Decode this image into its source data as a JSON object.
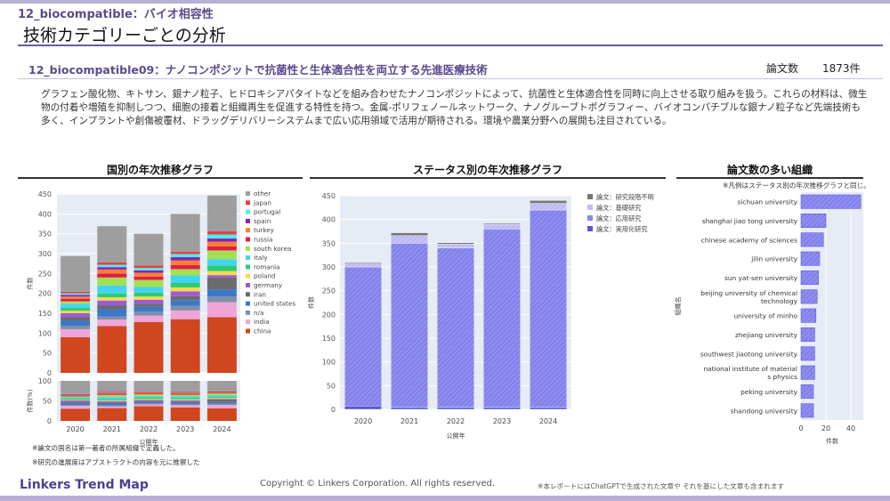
{
  "header": {
    "section_label": "12_biocompatible：バイオ相容性",
    "page_title": "技術カテゴリーごとの分析"
  },
  "topic": {
    "title": "12_biocompatible09：ナノコンポジットで抗菌性と生体適合性を両立する先進医療技術",
    "count_label": "論文数",
    "count_value": "1873件",
    "description": "グラフェン酸化物、キトサン、銀ナノ粒子、ヒドロキシアパタイトなどを組み合わせたナノコンポジットによって、抗菌性と生体適合性を同時に向上させる取り組みを扱う。これらの材料は、微生物の付着や増殖を抑制しつつ、細胞の接着と組織再生を促進する特性を持つ。金属-ポリフェノールネットワーク、ナノグルーブトポグラフィー、バイオコンパチブルな銀ナノ粒子など先端技術も多く、インプラントや創傷被覆材、ドラッグデリバリーシステムまで広い応用領域で活用が期待される。環境や農業分野への展開も注目されている。"
  },
  "colors": {
    "accent": "#5b4a8c",
    "bar_fill": "#8f8ef0",
    "bar_stroke": "#5c5cd6"
  },
  "notes": {
    "country_note": "※論文の国名は第一著者の所属組織で定義した。",
    "status_note": "※研究の進展度はアブストラクトの内容を元に推察した",
    "org_note": "※凡例はステータス別の年次推移グラフと同じ。"
  },
  "footer": {
    "brand": "Linkers Trend Map",
    "copyright": "Copyright © Linkers Corporation. All rights reserved.",
    "disclaimer": "※本レポートにはChatGPTで生成された文章や それを基にした文章も含まれます"
  },
  "chart_data": [
    {
      "type": "bar",
      "stacked": true,
      "title": "国別の年次推移グラフ",
      "xlabel": "公開年",
      "ylabel": "件数",
      "ylabel_pct": "件数(%)",
      "ylim": [
        0,
        450
      ],
      "yticks": [
        0,
        50,
        100,
        150,
        200,
        250,
        300,
        350,
        400,
        450
      ],
      "pct_ticks": [
        0,
        50,
        100
      ],
      "categories": [
        "2020",
        "2021",
        "2022",
        "2023",
        "2024"
      ],
      "series": [
        {
          "name": "china",
          "color": "#d0461f",
          "values": [
            90,
            118,
            128,
            135,
            140
          ]
        },
        {
          "name": "india",
          "color": "#f0a5d8",
          "values": [
            20,
            16,
            16,
            22,
            38
          ]
        },
        {
          "name": "n/a",
          "color": "#7f8fa6",
          "values": [
            8,
            8,
            10,
            12,
            14
          ]
        },
        {
          "name": "united states",
          "color": "#3c78c8",
          "values": [
            14,
            18,
            12,
            14,
            18
          ]
        },
        {
          "name": "iran",
          "color": "#6b6b6b",
          "values": [
            8,
            10,
            8,
            10,
            30
          ]
        },
        {
          "name": "germany",
          "color": "#9c5bd6",
          "values": [
            10,
            12,
            10,
            12,
            6
          ]
        },
        {
          "name": "poland",
          "color": "#ffd84d",
          "values": [
            6,
            8,
            8,
            10,
            10
          ]
        },
        {
          "name": "romania",
          "color": "#2ecc71",
          "values": [
            8,
            10,
            10,
            12,
            14
          ]
        },
        {
          "name": "italy",
          "color": "#42d4f4",
          "values": [
            10,
            20,
            14,
            18,
            16
          ]
        },
        {
          "name": "south korea",
          "color": "#a3e04f",
          "values": [
            6,
            20,
            18,
            16,
            22
          ]
        },
        {
          "name": "russia",
          "color": "#e6194b",
          "values": [
            6,
            10,
            8,
            10,
            10
          ]
        },
        {
          "name": "turkey",
          "color": "#f58231",
          "values": [
            6,
            10,
            10,
            12,
            12
          ]
        },
        {
          "name": "spain",
          "color": "#911eb4",
          "values": [
            4,
            6,
            6,
            8,
            8
          ]
        },
        {
          "name": "portugal",
          "color": "#46f0f0",
          "values": [
            4,
            6,
            6,
            8,
            10
          ]
        },
        {
          "name": "japan",
          "color": "#e84040",
          "values": [
            4,
            6,
            6,
            6,
            8
          ]
        },
        {
          "name": "other",
          "color": "#9e9e9e",
          "values": [
            90,
            91,
            80,
            95,
            90
          ]
        }
      ],
      "legend_order": [
        "other",
        "japan",
        "portugal",
        "spain",
        "turkey",
        "russia",
        "south korea",
        "italy",
        "romania",
        "poland",
        "germany",
        "iran",
        "united states",
        "n/a",
        "india",
        "china"
      ]
    },
    {
      "type": "bar",
      "stacked": true,
      "title": "ステータス別の年次推移グラフ",
      "xlabel": "公開年",
      "ylabel": "件数",
      "ylim": [
        0,
        450
      ],
      "yticks": [
        0,
        50,
        100,
        150,
        200,
        250,
        300,
        350,
        400,
        450
      ],
      "categories": [
        "2020",
        "2021",
        "2022",
        "2023",
        "2024"
      ],
      "series": [
        {
          "name": "論文：実用化研究",
          "color": "#5c5cd6",
          "values": [
            7,
            4,
            4,
            4,
            4
          ]
        },
        {
          "name": "論文：応用研究",
          "color": "#8f8ef0",
          "values": [
            293,
            346,
            336,
            376,
            416
          ]
        },
        {
          "name": "論文：基礎研究",
          "color": "#c5c3f5",
          "values": [
            8,
            16,
            8,
            10,
            14
          ]
        },
        {
          "name": "論文：研究段階不明",
          "color": "#777777",
          "values": [
            2,
            6,
            3,
            2,
            6
          ]
        }
      ],
      "legend_order": [
        "論文：研究段階不明",
        "論文：基礎研究",
        "論文：応用研究",
        "論文：実用化研究"
      ]
    },
    {
      "type": "bar",
      "orientation": "horizontal",
      "title": "論文数の多い組織",
      "xlabel": "件数",
      "ylabel": "組織名",
      "xlim": [
        0,
        50
      ],
      "xticks": [
        0,
        20,
        40
      ],
      "categories": [
        "sichuan university",
        "shanghai jiao tong university",
        "chinese academy of sciences",
        "jilin university",
        "sun yat-sen university",
        "beijing university of chemical technology",
        "university of minho",
        "zhejiang university",
        "southwest jiaotong university",
        "national institute of materials physics",
        "peking university",
        "shandong university"
      ],
      "labels": [
        [
          "sichuan university"
        ],
        [
          "shanghai jiao tong university"
        ],
        [
          "chinese academy of sciences"
        ],
        [
          "jilin university"
        ],
        [
          "sun yat-sen university"
        ],
        [
          "beijing university of chemical",
          "technology"
        ],
        [
          "university of minho"
        ],
        [
          "zhejiang university"
        ],
        [
          "southwest jiaotong university"
        ],
        [
          "national institute of material",
          "s physics"
        ],
        [
          "peking university"
        ],
        [
          "shandong university"
        ]
      ],
      "values": [
        48,
        20,
        18,
        15,
        14,
        13,
        12,
        11,
        11,
        11,
        10,
        10
      ]
    }
  ]
}
